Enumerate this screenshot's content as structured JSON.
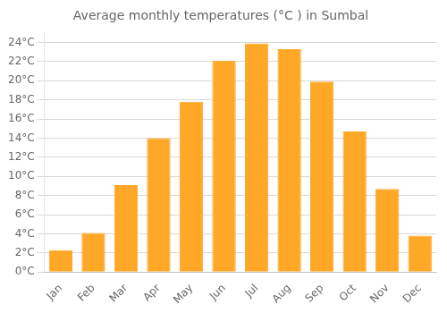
{
  "chart_data": {
    "type": "bar",
    "title": "Average monthly temperatures (°C ) in Sumbal",
    "categories": [
      "Jan",
      "Feb",
      "Mar",
      "Apr",
      "May",
      "Jun",
      "Jul",
      "Aug",
      "Sep",
      "Oct",
      "Nov",
      "Dec"
    ],
    "values": [
      2.3,
      4.1,
      9.1,
      14.0,
      17.8,
      22.1,
      23.9,
      23.3,
      19.9,
      14.7,
      8.7,
      3.8
    ],
    "color": "#FFA726",
    "ylim": [
      0,
      25
    ],
    "yticks": [
      {
        "value": 0,
        "label": "0°C"
      },
      {
        "value": 2,
        "label": "2°C"
      },
      {
        "value": 4,
        "label": "4°C"
      },
      {
        "value": 6,
        "label": "6°C"
      },
      {
        "value": 8,
        "label": "8°C"
      },
      {
        "value": 10,
        "label": "10°C"
      },
      {
        "value": 12,
        "label": "12°C"
      },
      {
        "value": 14,
        "label": "14°C"
      },
      {
        "value": 16,
        "label": "16°C"
      },
      {
        "value": 18,
        "label": "18°C"
      },
      {
        "value": 20,
        "label": "20°C"
      },
      {
        "value": 22,
        "label": "22°C"
      },
      {
        "value": 24,
        "label": "24°C"
      }
    ],
    "grid": true
  }
}
